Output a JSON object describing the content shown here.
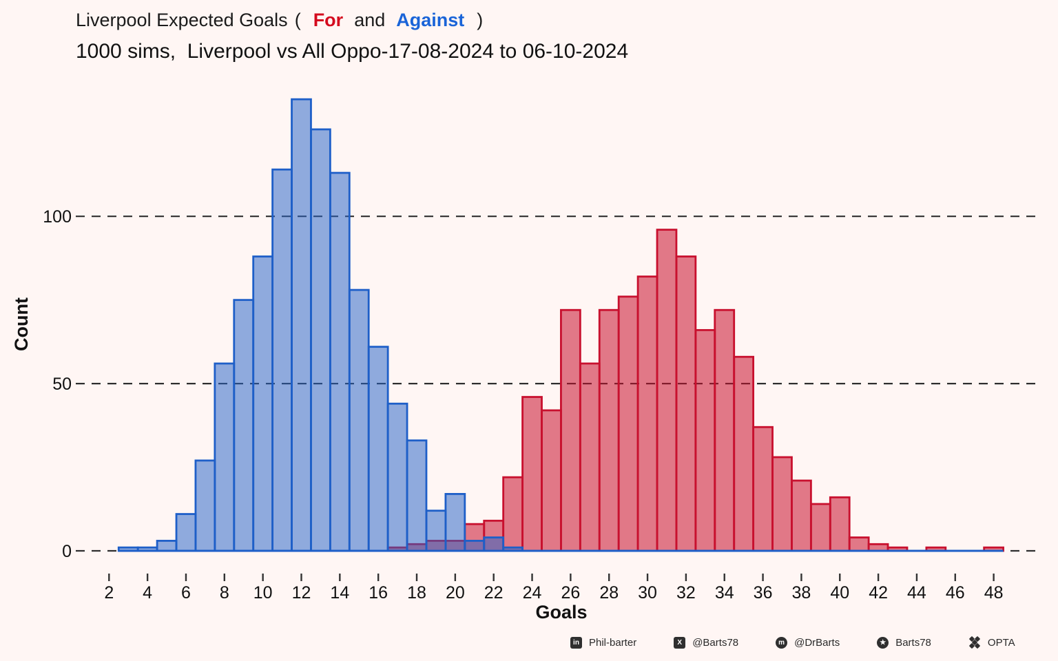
{
  "title": {
    "main": "Liverpool Expected Goals",
    "open": "(",
    "for_label": "For",
    "and_label": "and",
    "against_label": "Against",
    "close": ")"
  },
  "subtitle": "1000 sims,  Liverpool vs All Oppo-17-08-2024 to 06-10-2024",
  "colors": {
    "background": "#FFF6F4",
    "title_for": "#D40A1E",
    "title_against": "#1A64D8",
    "grid": "#2e2e2e",
    "text": "#111111"
  },
  "chart_data": {
    "type": "bar",
    "subtype": "overlaid-histograms",
    "title": "Liverpool Expected Goals ( For and Against )",
    "xlabel": "Goals",
    "ylabel": "Count",
    "x_ticks": [
      2,
      4,
      6,
      8,
      10,
      12,
      14,
      16,
      18,
      20,
      22,
      24,
      26,
      28,
      30,
      32,
      34,
      36,
      38,
      40,
      42,
      44,
      46,
      48
    ],
    "y_ticks": [
      0,
      50,
      100
    ],
    "ylim": [
      0,
      140
    ],
    "bin_width": 1,
    "grid": "horizontal dashed at y ticks",
    "legend_position": "none (color-coded in title)",
    "series": [
      {
        "name": "For (red histogram)",
        "stroke": "#C8102E",
        "fill_rgba": "rgba(200,16,46,0.55)",
        "first_bin": 17,
        "counts": [
          1,
          2,
          3,
          3,
          8,
          9,
          22,
          46,
          42,
          72,
          56,
          72,
          76,
          82,
          96,
          88,
          66,
          72,
          58,
          37,
          28,
          21,
          14,
          16,
          4,
          2,
          1,
          0,
          1,
          0,
          0,
          1
        ]
      },
      {
        "name": "Against (blue histogram)",
        "stroke": "#1E5FC8",
        "fill_rgba": "rgba(40,100,200,0.52)",
        "first_bin": 3,
        "counts": [
          1,
          1,
          3,
          11,
          27,
          56,
          75,
          88,
          114,
          135,
          126,
          113,
          78,
          61,
          44,
          33,
          12,
          17,
          3,
          4,
          1
        ]
      }
    ]
  },
  "footer": {
    "items": [
      {
        "icon": "linkedin-icon",
        "label": "Phil-barter"
      },
      {
        "icon": "x-icon",
        "label": "@Barts78"
      },
      {
        "icon": "mastodon-icon",
        "label": "@DrBarts"
      },
      {
        "icon": "github-icon",
        "label": "Barts78"
      },
      {
        "icon": "opta-icon",
        "label": "OPTA"
      }
    ]
  }
}
